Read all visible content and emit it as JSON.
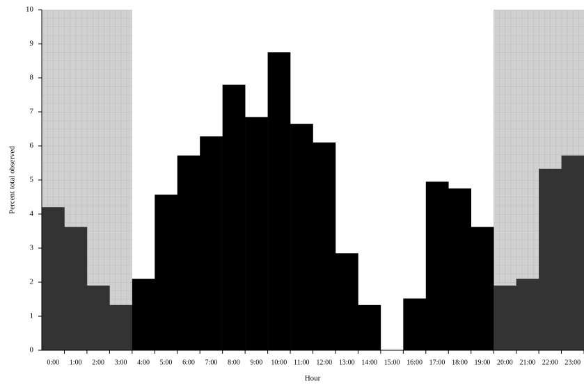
{
  "chart_data": {
    "type": "bar",
    "x_label": "Hour",
    "y_label": "Percent total observed",
    "categories": [
      "0:00",
      "1:00",
      "2:00",
      "3:00",
      "4:00",
      "5:00",
      "6:00",
      "7:00",
      "8:00",
      "9:00",
      "10:00",
      "11:00",
      "12:00",
      "13:00",
      "14:00",
      "15:00",
      "16:00",
      "17:00",
      "18:00",
      "19:00",
      "20:00",
      "21:00",
      "22:00",
      "23:00"
    ],
    "values": [
      4.2,
      3.62,
      1.9,
      1.33,
      2.1,
      4.57,
      5.72,
      6.28,
      7.8,
      6.85,
      8.75,
      6.65,
      6.1,
      2.85,
      1.33,
      0,
      1.52,
      4.95,
      4.75,
      3.62,
      1.9,
      2.1,
      5.33,
      5.72
    ],
    "color": "#000000",
    "shaded_color": "#333333",
    "shaded_ranges": [
      [
        0,
        4
      ],
      [
        20,
        24
      ]
    ],
    "ylim": [
      0,
      10
    ],
    "yticks": [
      0,
      1,
      2,
      3,
      4,
      5,
      6,
      7,
      8,
      9,
      10
    ]
  }
}
